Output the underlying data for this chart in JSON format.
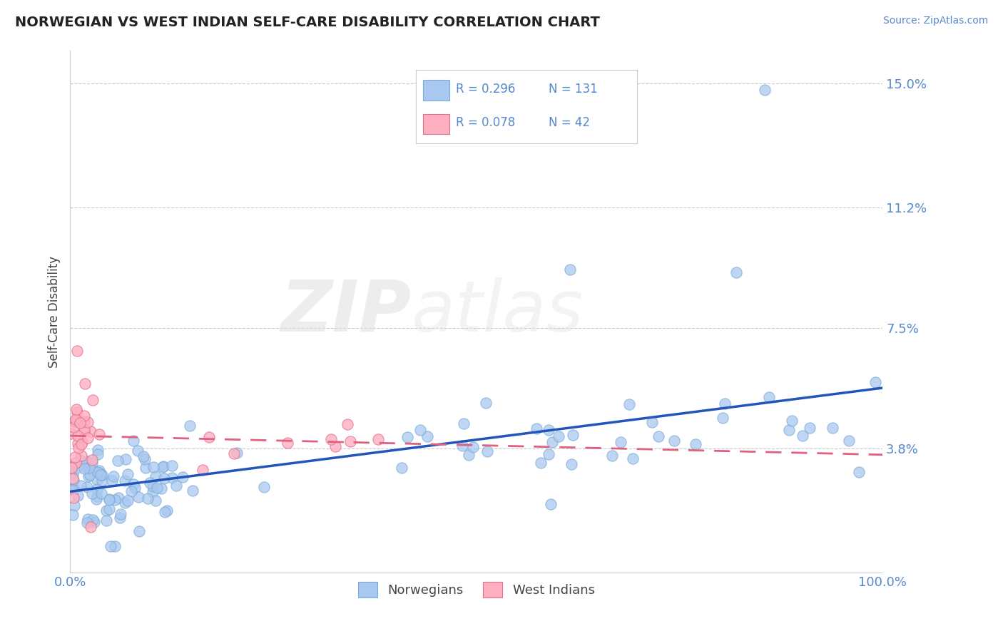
{
  "title": "NORWEGIAN VS WEST INDIAN SELF-CARE DISABILITY CORRELATION CHART",
  "source": "Source: ZipAtlas.com",
  "ylabel": "Self-Care Disability",
  "xlim": [
    0,
    1
  ],
  "ylim": [
    0,
    0.16
  ],
  "yticks": [
    0.038,
    0.075,
    0.112,
    0.15
  ],
  "ytick_labels": [
    "3.8%",
    "7.5%",
    "11.2%",
    "15.0%"
  ],
  "xtick_labels": [
    "0.0%",
    "100.0%"
  ],
  "norwegian_color": "#A8C8F0",
  "norwegian_edge_color": "#7BAAD4",
  "west_indian_color": "#FFB0C0",
  "west_indian_edge_color": "#E07090",
  "norwegian_line_color": "#2255BB",
  "west_indian_line_color": "#E06080",
  "R_norwegian": 0.296,
  "N_norwegian": 131,
  "R_west_indian": 0.078,
  "N_west_indian": 42,
  "legend_label_1": "Norwegians",
  "legend_label_2": "West Indians",
  "watermark_zip": "ZIP",
  "watermark_atlas": "atlas",
  "title_color": "#222222",
  "axis_label_color": "#5588CC",
  "background_color": "#FFFFFF",
  "grid_color": "#BBBBBB",
  "text_color": "#444444"
}
